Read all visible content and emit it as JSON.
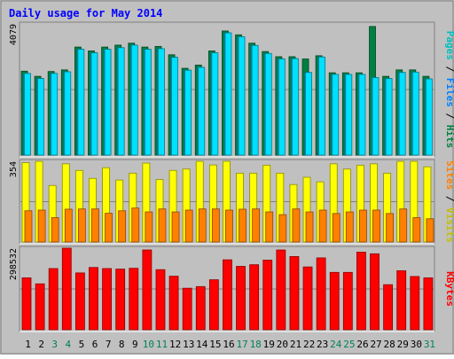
{
  "chart_data": {
    "type": "bar",
    "title": "Daily usage for May 2014",
    "categories": [
      "1",
      "2",
      "3",
      "4",
      "5",
      "6",
      "7",
      "8",
      "9",
      "10",
      "11",
      "12",
      "13",
      "14",
      "15",
      "16",
      "17",
      "18",
      "19",
      "20",
      "21",
      "22",
      "23",
      "24",
      "25",
      "26",
      "27",
      "28",
      "29",
      "30",
      "31"
    ],
    "weekend_days": [
      "3",
      "4",
      "10",
      "11",
      "17",
      "18",
      "24",
      "25",
      "31"
    ],
    "panels": [
      {
        "id": "hits",
        "ymax": 4079,
        "max_label": "4079",
        "side_labels": [
          "Pages",
          "Files",
          "Hits"
        ],
        "series": [
          {
            "name": "Hits",
            "color": "#008040",
            "values": [
              2610,
              2450,
              2600,
              2650,
              3360,
              3240,
              3360,
              3420,
              3480,
              3360,
              3380,
              3120,
              2700,
              2800,
              3240,
              3860,
              3740,
              3480,
              3220,
              3060,
              3060,
              2990,
              3090,
              2560,
              2560,
              2560,
              4000,
              2450,
              2650,
              2650,
              2450
            ]
          },
          {
            "name": "Files",
            "color": "#00c0ff",
            "values": [
              2540,
              2380,
              2540,
              2590,
              3290,
              3180,
              3290,
              3340,
              3420,
              3290,
              3310,
              3040,
              2640,
              2730,
              3180,
              3800,
              3680,
              3410,
              3160,
              2990,
              3000,
              2570,
              3050,
              2510,
              2510,
              2510,
              2410,
              2380,
              2570,
              2580,
              2370
            ]
          },
          {
            "name": "Pages",
            "color": "#00e0ff",
            "values": [
              2540,
              2380,
              2540,
              2590,
              3290,
              3180,
              3290,
              3340,
              3420,
              3290,
              3310,
              3040,
              2640,
              2730,
              3180,
              3800,
              3680,
              3410,
              3160,
              2990,
              3000,
              2570,
              3050,
              2510,
              2510,
              2510,
              2410,
              2380,
              2570,
              2580,
              2370
            ]
          }
        ]
      },
      {
        "id": "visits",
        "ymax": 354,
        "max_label": "354",
        "side_labels": [
          "Sites",
          "Visits"
        ],
        "series": [
          {
            "name": "Visits",
            "color": "#ffff00",
            "values": [
              348,
              354,
              248,
              343,
              314,
              279,
              326,
              272,
              302,
              346,
              274,
              314,
              320,
              354,
              338,
              354,
              302,
              302,
              337,
              302,
              252,
              284,
              264,
              343,
              320,
              337,
              343,
              302,
              354,
              354,
              330
            ]
          },
          {
            "name": "Sites",
            "color": "#ff8000",
            "values": [
              137,
              140,
              107,
              144,
              145,
              145,
              126,
              137,
              149,
              132,
              145,
              132,
              140,
              145,
              145,
              140,
              144,
              145,
              132,
              120,
              145,
              132,
              140,
              125,
              132,
              140,
              140,
              125,
              145,
              107,
              102
            ]
          }
        ]
      },
      {
        "id": "kbytes",
        "ymax": 298532,
        "max_label": "298532",
        "side_labels": [
          "KBytes"
        ],
        "series": [
          {
            "name": "KBytes",
            "color": "#ff0000",
            "values": [
              190000,
              168000,
              224000,
              298532,
              208000,
              228000,
              224000,
              222000,
              225000,
              292000,
              220000,
              196000,
              152000,
              158000,
              183000,
              256000,
              232000,
              238000,
              255000,
              292000,
              268000,
              230000,
              263000,
              210000,
              210000,
              284000,
              278000,
              165000,
              216000,
              195000,
              190000
            ]
          }
        ]
      }
    ]
  }
}
